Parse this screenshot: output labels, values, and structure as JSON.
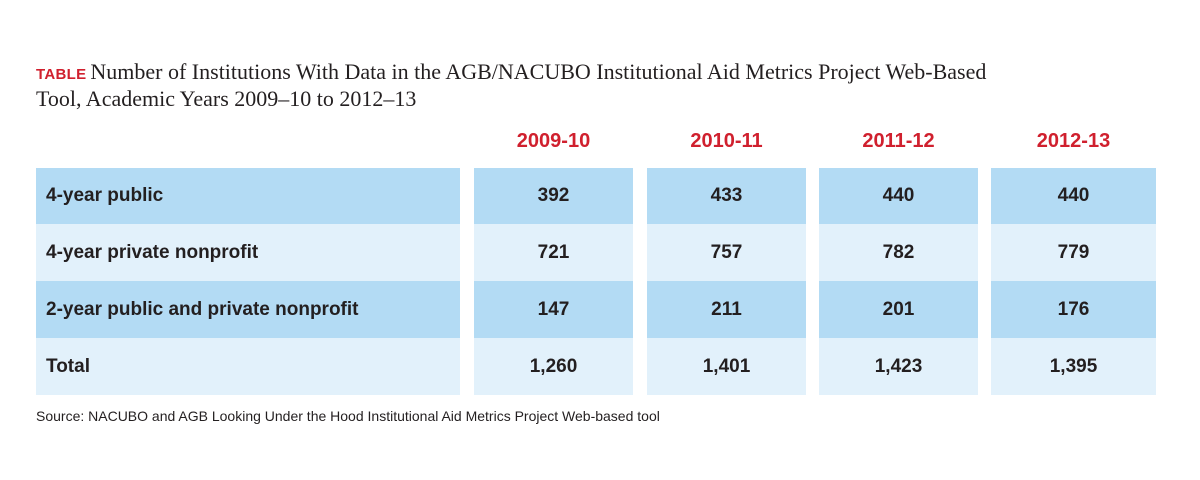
{
  "title": {
    "tag": "TABLE",
    "text": "Number of Institutions With Data in the AGB/NACUBO Institutional Aid Metrics Project Web-Based Tool, Academic Years 2009–10 to 2012–13"
  },
  "table": {
    "columns": [
      "2009-10",
      "2010-11",
      "2011-12",
      "2012-13"
    ],
    "rows": [
      {
        "label": "4-year public",
        "values": [
          "392",
          "433",
          "440",
          "440"
        ]
      },
      {
        "label": "4-year private nonprofit",
        "values": [
          "721",
          "757",
          "782",
          "779"
        ]
      },
      {
        "label": "2-year public and private nonprofit",
        "values": [
          "147",
          "211",
          "201",
          "176"
        ]
      },
      {
        "label": "Total",
        "values": [
          "1,260",
          "1,401",
          "1,423",
          "1,395"
        ]
      }
    ]
  },
  "source": "Source: NACUBO and AGB Looking Under the Hood Institutional Aid Metrics Project Web-based tool",
  "colors": {
    "accent_red": "#d0202e",
    "row_dark": "#b3dbf4",
    "row_light": "#e2f1fb",
    "text": "#231f20"
  }
}
